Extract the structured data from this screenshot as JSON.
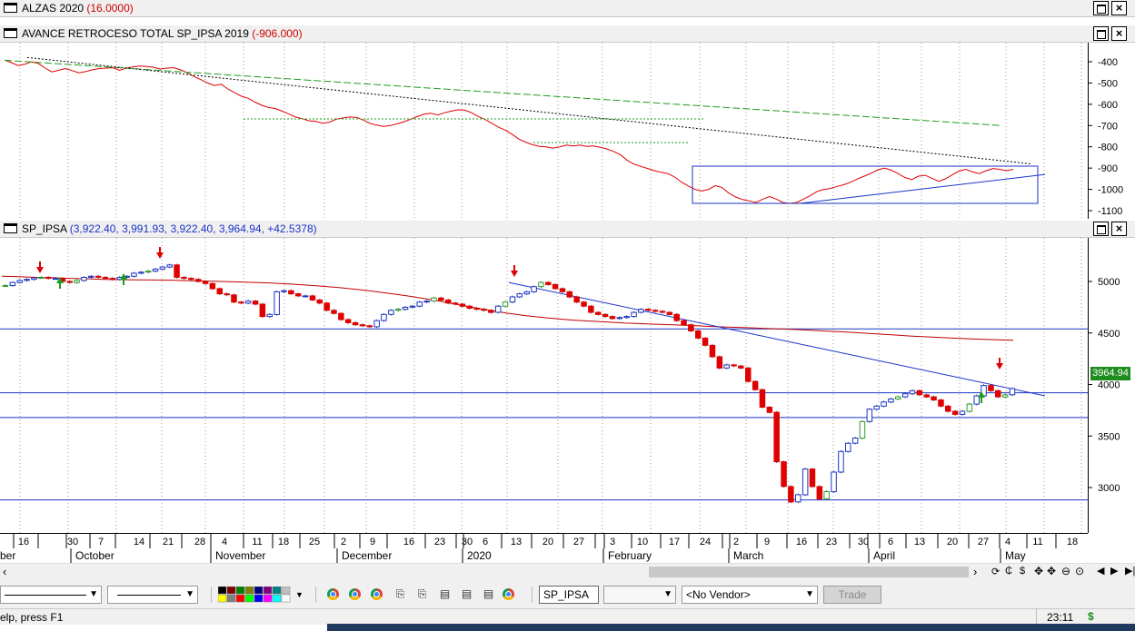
{
  "windows": {
    "alzas": {
      "title": "ALZAS 2020",
      "value": "(16.0000)"
    },
    "avance": {
      "title": "AVANCE RETROCESO TOTAL SP_IPSA 2019",
      "value": "(-906.000)"
    },
    "main": {
      "title": "SP_IPSA",
      "value": "(3,922.40, 3,991.93, 3,922.40, 3,964.94, +42.5378)"
    },
    "close_glyph": "×"
  },
  "chart_data": [
    {
      "type": "line",
      "title": "AVANCE RETROCESO TOTAL SP_IPSA 2019",
      "y_ticks": [
        "-400",
        "-500",
        "-600",
        "-700",
        "-800",
        "-900",
        "-1000",
        "-1100"
      ],
      "ylim": [
        -1100,
        -400
      ],
      "series": [
        {
          "color": "#e00000",
          "values": [
            -392,
            -404,
            -418,
            -412,
            -400,
            -408,
            -430,
            -448,
            -440,
            -432,
            -442,
            -452,
            -446,
            -438,
            -432,
            -430,
            -428,
            -440,
            -430,
            -424,
            -420,
            -422,
            -426,
            -434,
            -430,
            -428,
            -438,
            -452,
            -470,
            -484,
            -500,
            -512,
            -506,
            -528,
            -546,
            -562,
            -572,
            -590,
            -605,
            -615,
            -620,
            -632,
            -646,
            -660,
            -668,
            -678,
            -680,
            -690,
            -684,
            -670,
            -664,
            -660,
            -662,
            -674,
            -690,
            -698,
            -704,
            -700,
            -692,
            -682,
            -670,
            -658,
            -646,
            -642,
            -650,
            -640,
            -632,
            -626,
            -628,
            -640,
            -658,
            -672,
            -690,
            -708,
            -722,
            -742,
            -764,
            -778,
            -790,
            -798,
            -800,
            -806,
            -800,
            -792,
            -796,
            -792,
            -798,
            -796,
            -802,
            -810,
            -822,
            -838,
            -864,
            -882,
            -892,
            -902,
            -912,
            -920,
            -926,
            -942,
            -966,
            -984,
            -1000,
            -1008,
            -1000,
            -982,
            -992,
            -1018,
            -1036,
            -1048,
            -1054,
            -1062,
            -1046,
            -1034,
            -1046,
            -1062,
            -1066,
            -1062,
            -1046,
            -1030,
            -1010,
            -1000,
            -996,
            -986,
            -978,
            -966,
            -950,
            -938,
            -924,
            -908,
            -900,
            -910,
            -926,
            -944,
            -954,
            -938,
            -934,
            -948,
            -962,
            -950,
            -932,
            -914,
            -906,
            -918,
            -926,
            -912,
            -902,
            -906,
            -912,
            -906
          ]
        },
        {
          "color": "#1e9c1e",
          "values": [
            -393,
            -700
          ]
        },
        {
          "color": "#000000",
          "values": [
            -380,
            -880
          ]
        },
        {
          "color": "#1a33c8",
          "values": [
            -1066,
            -930
          ]
        }
      ]
    },
    {
      "type": "candlestick",
      "title": "SP_IPSA",
      "y_ticks": [
        "5000",
        "4500",
        "4000",
        "3500",
        "3000"
      ],
      "ylim": [
        2750,
        5280
      ],
      "last_price": "3964.94",
      "x_tick_labels": [
        "16",
        "30",
        "7",
        "14",
        "21",
        "28",
        "4",
        "11",
        "18",
        "25",
        "2",
        "9",
        "16",
        "23",
        "30",
        "6",
        "13",
        "20",
        "27",
        "3",
        "10",
        "17",
        "24",
        "2",
        "9",
        "16",
        "23",
        "30",
        "6",
        "13",
        "20",
        "27",
        "4",
        "11",
        "18"
      ],
      "month_labels": [
        "ber",
        "October",
        "November",
        "December",
        "2020",
        "February",
        "March",
        "April",
        "May"
      ],
      "horizontal_levels": [
        4540,
        3920,
        3680,
        2880
      ],
      "moving_average": [
        5050,
        5046,
        5040,
        5036,
        5030,
        5026,
        5020,
        5018,
        5016,
        5014,
        5012,
        5008,
        5004,
        5000,
        4996,
        4990,
        4984,
        4976,
        4966,
        4954,
        4940,
        4924,
        4906,
        4884,
        4862,
        4836,
        4808,
        4776,
        4746,
        4718,
        4692,
        4670,
        4652,
        4636,
        4624,
        4614,
        4606,
        4596,
        4590,
        4584,
        4578,
        4572,
        4564,
        4558,
        4552,
        4546,
        4540,
        4534,
        4526,
        4518,
        4510,
        4500,
        4490,
        4480,
        4470,
        4462,
        4454,
        4446,
        4440,
        4434,
        4430
      ]
    }
  ],
  "toolbar": {
    "symbol": "SP_IPSA",
    "vendor": "<No Vendor>",
    "trade": "Trade"
  },
  "status": {
    "help": "elp, press F1",
    "time": "23:11",
    "dollar": "$"
  }
}
